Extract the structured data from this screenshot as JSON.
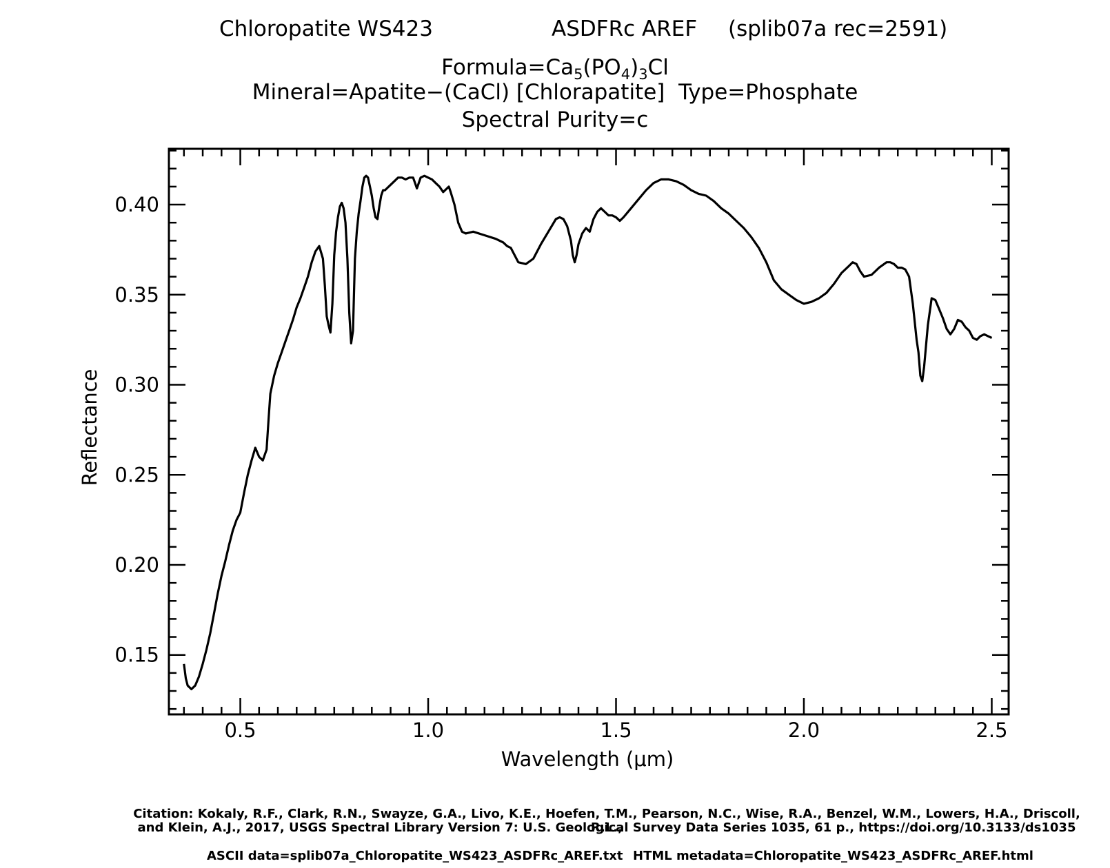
{
  "header": {
    "sample_name": "Chloropatite WS423",
    "measurement": "ASDFRc AREF",
    "library_record": "(splib07a rec=2591)",
    "formula_prefix": "Formula=Ca",
    "formula_sub1": "5",
    "formula_mid": "(PO",
    "formula_sub2": "4",
    "formula_mid2": ")",
    "formula_sub3": "3",
    "formula_suffix": "Cl",
    "mineral_line": "Mineral=Apatite−(CaCl) [Chlorapatite]  Type=Phosphate",
    "purity_line": "Spectral Purity=c"
  },
  "footer": {
    "citation_line1": "Citation: Kokaly, R.F., Clark, R.N., Swayze, G.A., Livo, K.E., Hoefen, T.M., Pearson, N.C., Wise, R.A., Benzel, W.M., Lowers, H.A., Driscoll, R.L.,",
    "citation_line2": "and Klein, A.J., 2017, USGS Spectral Library Version 7: U.S. Geological Survey Data Series 1035, 61 p., https://doi.org/10.3133/ds1035",
    "ascii_data": "ASCII data=splib07a_Chloropatite_WS423_ASDFRc_AREF.txt",
    "html_metadata": "HTML metadata=Chloropatite_WS423_ASDFRc_AREF.html"
  },
  "chart_data": {
    "type": "line",
    "xlabel": "Wavelength (μm)",
    "ylabel": "Reflectance",
    "xlim": [
      0.31,
      2.545
    ],
    "ylim": [
      0.117,
      0.431
    ],
    "x_ticks": [
      0.5,
      1.0,
      1.5,
      2.0,
      2.5
    ],
    "x_tick_labels": [
      "0.5",
      "1.0",
      "1.5",
      "2.0",
      "2.5"
    ],
    "y_ticks": [
      0.15,
      0.2,
      0.25,
      0.3,
      0.35,
      0.4
    ],
    "y_tick_labels": [
      "0.15",
      "0.20",
      "0.25",
      "0.30",
      "0.35",
      "0.40"
    ],
    "grid": false,
    "line_color": "#000000",
    "series": [
      {
        "x": [
          0.35,
          0.355,
          0.36,
          0.37,
          0.38,
          0.39,
          0.4,
          0.41,
          0.42,
          0.43,
          0.44,
          0.45,
          0.46,
          0.47,
          0.48,
          0.49,
          0.5,
          0.51,
          0.52,
          0.53,
          0.54,
          0.55,
          0.56,
          0.57,
          0.575,
          0.58,
          0.59,
          0.6,
          0.61,
          0.62,
          0.63,
          0.64,
          0.65,
          0.66,
          0.67,
          0.68,
          0.69,
          0.7,
          0.71,
          0.72,
          0.725,
          0.73,
          0.735,
          0.74,
          0.745,
          0.75,
          0.755,
          0.76,
          0.765,
          0.77,
          0.775,
          0.78,
          0.785,
          0.79,
          0.795,
          0.8,
          0.805,
          0.81,
          0.815,
          0.82,
          0.825,
          0.83,
          0.835,
          0.84,
          0.845,
          0.85,
          0.855,
          0.86,
          0.865,
          0.87,
          0.875,
          0.88,
          0.885,
          0.89,
          0.9,
          0.91,
          0.92,
          0.93,
          0.94,
          0.95,
          0.96,
          0.965,
          0.97,
          0.975,
          0.98,
          0.99,
          1.0,
          1.01,
          1.02,
          1.03,
          1.04,
          1.05,
          1.055,
          1.06,
          1.07,
          1.08,
          1.09,
          1.1,
          1.12,
          1.15,
          1.18,
          1.2,
          1.21,
          1.22,
          1.24,
          1.26,
          1.28,
          1.3,
          1.32,
          1.34,
          1.35,
          1.36,
          1.37,
          1.38,
          1.385,
          1.39,
          1.395,
          1.4,
          1.41,
          1.42,
          1.43,
          1.44,
          1.45,
          1.46,
          1.47,
          1.48,
          1.49,
          1.5,
          1.51,
          1.52,
          1.54,
          1.56,
          1.58,
          1.6,
          1.62,
          1.64,
          1.66,
          1.68,
          1.7,
          1.72,
          1.74,
          1.76,
          1.78,
          1.8,
          1.82,
          1.84,
          1.86,
          1.88,
          1.9,
          1.92,
          1.94,
          1.96,
          1.98,
          2.0,
          2.02,
          2.04,
          2.06,
          2.08,
          2.1,
          2.12,
          2.13,
          2.14,
          2.15,
          2.16,
          2.18,
          2.2,
          2.22,
          2.23,
          2.24,
          2.25,
          2.26,
          2.27,
          2.28,
          2.29,
          2.3,
          2.305,
          2.31,
          2.315,
          2.32,
          2.33,
          2.34,
          2.35,
          2.36,
          2.37,
          2.38,
          2.39,
          2.4,
          2.41,
          2.42,
          2.43,
          2.44,
          2.45,
          2.46,
          2.47,
          2.48,
          2.49,
          2.5
        ],
        "y": [
          0.145,
          0.137,
          0.133,
          0.131,
          0.133,
          0.138,
          0.145,
          0.153,
          0.162,
          0.173,
          0.184,
          0.194,
          0.202,
          0.211,
          0.219,
          0.225,
          0.229,
          0.24,
          0.25,
          0.258,
          0.265,
          0.26,
          0.258,
          0.264,
          0.28,
          0.295,
          0.305,
          0.312,
          0.318,
          0.324,
          0.33,
          0.336,
          0.343,
          0.348,
          0.354,
          0.36,
          0.368,
          0.374,
          0.377,
          0.37,
          0.355,
          0.338,
          0.333,
          0.329,
          0.345,
          0.372,
          0.385,
          0.393,
          0.399,
          0.401,
          0.398,
          0.39,
          0.37,
          0.34,
          0.323,
          0.33,
          0.37,
          0.385,
          0.395,
          0.402,
          0.41,
          0.415,
          0.416,
          0.415,
          0.41,
          0.405,
          0.398,
          0.393,
          0.392,
          0.399,
          0.405,
          0.408,
          0.408,
          0.409,
          0.411,
          0.413,
          0.415,
          0.415,
          0.414,
          0.415,
          0.415,
          0.412,
          0.409,
          0.412,
          0.415,
          0.416,
          0.415,
          0.414,
          0.412,
          0.41,
          0.407,
          0.409,
          0.41,
          0.407,
          0.4,
          0.39,
          0.385,
          0.384,
          0.385,
          0.383,
          0.381,
          0.379,
          0.377,
          0.376,
          0.368,
          0.367,
          0.37,
          0.378,
          0.385,
          0.392,
          0.393,
          0.392,
          0.388,
          0.38,
          0.372,
          0.368,
          0.372,
          0.378,
          0.384,
          0.387,
          0.385,
          0.392,
          0.396,
          0.398,
          0.396,
          0.394,
          0.394,
          0.393,
          0.391,
          0.393,
          0.398,
          0.403,
          0.408,
          0.412,
          0.414,
          0.414,
          0.413,
          0.411,
          0.408,
          0.406,
          0.405,
          0.402,
          0.398,
          0.395,
          0.391,
          0.387,
          0.382,
          0.376,
          0.368,
          0.358,
          0.353,
          0.35,
          0.347,
          0.345,
          0.346,
          0.348,
          0.351,
          0.356,
          0.362,
          0.366,
          0.368,
          0.367,
          0.363,
          0.36,
          0.361,
          0.365,
          0.368,
          0.368,
          0.367,
          0.365,
          0.365,
          0.364,
          0.36,
          0.345,
          0.325,
          0.318,
          0.305,
          0.302,
          0.31,
          0.333,
          0.348,
          0.347,
          0.342,
          0.337,
          0.331,
          0.328,
          0.331,
          0.336,
          0.335,
          0.332,
          0.33,
          0.326,
          0.325,
          0.327,
          0.328,
          0.327,
          0.326
        ]
      }
    ]
  }
}
